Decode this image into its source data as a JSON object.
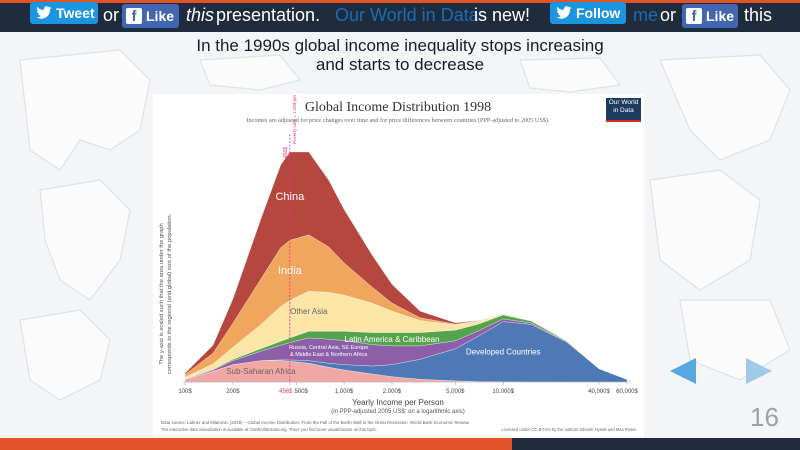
{
  "topbar": {
    "tweet_label": "Tweet",
    "like_label": "Like",
    "follow_label": "Follow",
    "sentence1": {
      "or": "or",
      "this": "this",
      "presentation": "presentation."
    },
    "owid_link": "Our World in Data",
    "is_new": "is new!",
    "sentence2": {
      "me": "me",
      "or": "or",
      "this": "this"
    }
  },
  "slide": {
    "subtitle_line1": "In the 1990s global income inequality stops increasing",
    "subtitle_line2": "and starts to decrease",
    "page_number": "16"
  },
  "colors": {
    "china": "#b5473e",
    "india": "#f0a65d",
    "other_asia": "#fbe6a8",
    "latam": "#55a34d",
    "russia": "#8c5fa8",
    "ssa": "#f1a7a4",
    "developed": "#4f79b4",
    "poverty_line": "#e8317c"
  },
  "chart_data": {
    "type": "area",
    "title": "Global Income Distribution 1998",
    "subtitle": "Incomes are adjusted for price changes over time and for price differences between countries (PPP-adjusted to 2005 US$).",
    "logo": "Our World in Data",
    "xlabel": "Yearly Income per Person",
    "xlabel2": "(in PPP-adjusted 2005 US$; on a logarithmic axis)",
    "ylabel1": "The y-axis is scaled such that the area under the graph",
    "ylabel2": "corresponds to the regional (and global) size of the population.",
    "x_scale": "log",
    "xlim": [
      100,
      60000
    ],
    "x_ticks": [
      {
        "value": 100,
        "label": "100$"
      },
      {
        "value": 200,
        "label": "200$"
      },
      {
        "value": 456,
        "label": "456$",
        "highlight": true
      },
      {
        "value": 500,
        "label": "500$"
      },
      {
        "value": 1000,
        "label": "1,000$"
      },
      {
        "value": 2000,
        "label": "2,000$"
      },
      {
        "value": 5000,
        "label": "5,000$"
      },
      {
        "value": 10000,
        "label": "10,000$"
      },
      {
        "value": 40000,
        "label": "40,000$"
      },
      {
        "value": 60000,
        "label": "60,000$"
      }
    ],
    "poverty_line": {
      "value": 456,
      "label": "456$",
      "note": "Poverty Line = 1.25$ per day"
    },
    "x": [
      100,
      150,
      200,
      300,
      400,
      456,
      600,
      800,
      1000,
      1500,
      2000,
      3000,
      5000,
      7000,
      10000,
      15000,
      25000,
      40000,
      60000
    ],
    "series": [
      {
        "name": "Sub-Saharan Africa",
        "label": "Sub-Saharan Africa",
        "values": [
          2,
          8,
          13,
          16,
          16,
          15.5,
          14,
          11,
          9,
          6,
          4,
          2,
          0.8,
          0.4,
          0.2,
          0.1,
          0,
          0,
          0
        ]
      },
      {
        "name": "Developed Countries",
        "label": "Developed Countries",
        "values": [
          0,
          0,
          0,
          0,
          0.5,
          1,
          2,
          3,
          4,
          6,
          9,
          15,
          24,
          34,
          45,
          43,
          30,
          10,
          2
        ]
      },
      {
        "name": "Russia, Central Asia, SE Europe & Middle East & Northern Africa",
        "label": "Russia, Central Asia, SE Europe & Middle East & Northern Africa",
        "values": [
          0.3,
          1,
          3,
          7,
          11,
          13,
          17,
          18,
          18,
          16,
          14,
          10,
          6,
          4,
          2,
          1,
          0.3,
          0,
          0
        ]
      },
      {
        "name": "Latin America & Caribbean",
        "label": "Latin America & Caribbean",
        "values": [
          0.2,
          0.5,
          1,
          2,
          3,
          3.5,
          5,
          6,
          7,
          9,
          10,
          10,
          8,
          5,
          3,
          1.5,
          0.5,
          0,
          0
        ]
      },
      {
        "name": "Other Asia",
        "label": "Other Asia",
        "values": [
          1,
          4,
          9,
          18,
          26,
          28,
          30,
          29,
          27,
          22,
          16,
          9,
          4,
          2,
          1,
          0.5,
          0.2,
          0,
          0
        ]
      },
      {
        "name": "India",
        "label": "India",
        "values": [
          2,
          8,
          18,
          34,
          44,
          45,
          42,
          34,
          24,
          12,
          6,
          2,
          0.5,
          0.2,
          0,
          0,
          0,
          0,
          0
        ]
      },
      {
        "name": "China",
        "label": "China",
        "values": [
          1,
          6,
          18,
          45,
          62,
          66,
          62,
          50,
          40,
          24,
          14,
          5,
          1,
          0.3,
          0,
          0,
          0,
          0,
          0
        ]
      }
    ],
    "source": "Data source: Lakner and Milanovic (2015) – Global Income Distribution: From the Fall of the Berlin Wall to the Great Recession, World Bank Economic Review.",
    "footer_note": "The interactive data visualization is available at OurWorldinData.org. There you find more visualizations on this topic.",
    "license": "Licensed under CC-BY-SA by the authors Zdenek Hynek and Max Roser."
  }
}
